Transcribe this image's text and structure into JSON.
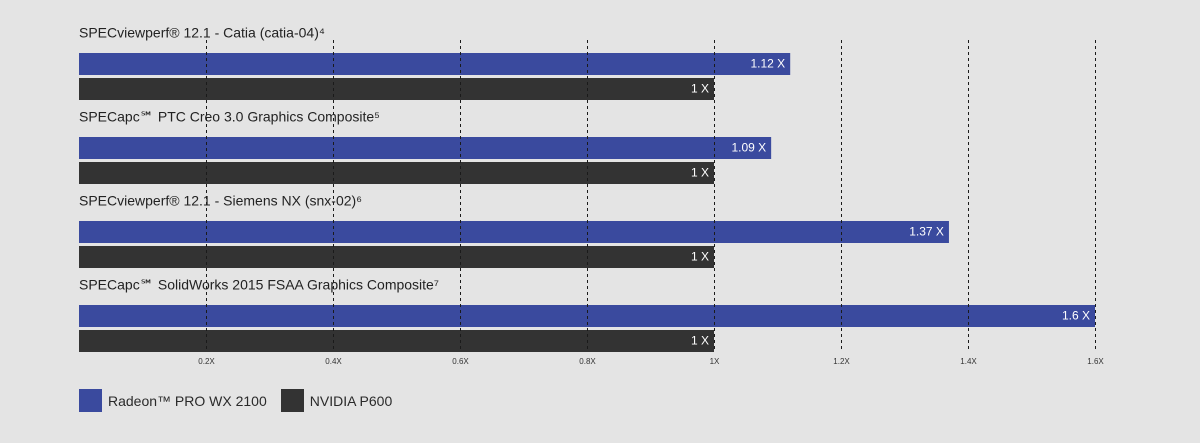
{
  "chart_data": {
    "type": "bar",
    "orientation": "horizontal",
    "categories": [
      "SPECviewperf® 12.1 - Catia (catia-04)⁴",
      "SPECapc℠ PTC Creo 3.0 Graphics Composite⁵",
      "SPECviewperf® 12.1 - Siemens NX (snx-02)⁶",
      "SPECapc℠ SolidWorks 2015 FSAA Graphics Composite⁷"
    ],
    "series": [
      {
        "name": "Radeon™ PRO WX 2100",
        "color": "#3a4a9e",
        "values": [
          1.12,
          1.09,
          1.37,
          1.6
        ],
        "labels": [
          "1.12 X",
          "1.09 X",
          "1.37 X",
          "1.6 X"
        ]
      },
      {
        "name": "NVIDIA P600",
        "color": "#333333",
        "values": [
          1,
          1,
          1,
          1
        ],
        "labels": [
          "1 X",
          "1 X",
          "1 X",
          "1 X"
        ]
      }
    ],
    "xlim": [
      0,
      1.6
    ],
    "xticks": [
      0.2,
      0.4,
      0.6,
      0.8,
      1.0,
      1.2,
      1.4,
      1.6
    ],
    "xtick_labels": [
      "0.2X",
      "0.4X",
      "0.6X",
      "0.8X",
      "1X",
      "1.2X",
      "1.4X",
      "1.6X"
    ],
    "grid": "vertical-dashed",
    "legend_position": "bottom-left",
    "title": "",
    "xlabel": "",
    "ylabel": ""
  }
}
